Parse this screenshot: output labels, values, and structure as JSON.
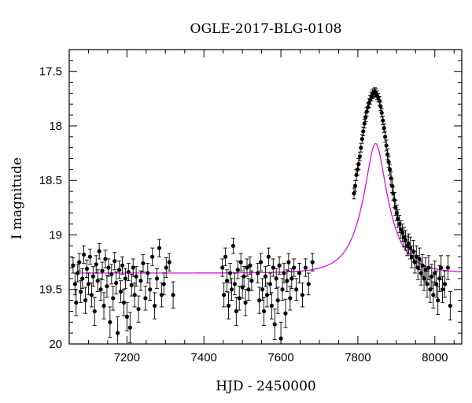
{
  "chart_data": {
    "type": "scatter",
    "title": "OGLE-2017-BLG-0108",
    "xlabel": "HJD - 2450000",
    "ylabel": "I magnitude",
    "xlim": [
      7050,
      8070
    ],
    "ylim": [
      20.0,
      17.3
    ],
    "y_inverted": true,
    "x_ticks": [
      7200,
      7400,
      7600,
      7800,
      8000
    ],
    "y_ticks": [
      17.5,
      18,
      18.5,
      19,
      19.5,
      20
    ],
    "y_tick_labels": [
      "17.5",
      "18",
      "18.5",
      "19",
      "19.5",
      "20"
    ],
    "grid": false,
    "series": [
      {
        "style": "points-with-error-bars",
        "color": "#000000",
        "points": [
          [
            7060,
            19.28,
            0.07
          ],
          [
            7065,
            19.45,
            0.1
          ],
          [
            7068,
            19.62,
            0.12
          ],
          [
            7072,
            19.35,
            0.08
          ],
          [
            7076,
            19.25,
            0.08
          ],
          [
            7080,
            19.52,
            0.1
          ],
          [
            7084,
            19.4,
            0.09
          ],
          [
            7088,
            19.18,
            0.08
          ],
          [
            7092,
            19.6,
            0.12
          ],
          [
            7096,
            19.31,
            0.08
          ],
          [
            7100,
            19.45,
            0.1
          ],
          [
            7104,
            19.2,
            0.07
          ],
          [
            7108,
            19.55,
            0.11
          ],
          [
            7112,
            19.38,
            0.09
          ],
          [
            7116,
            19.7,
            0.13
          ],
          [
            7120,
            19.27,
            0.08
          ],
          [
            7124,
            19.42,
            0.1
          ],
          [
            7128,
            19.15,
            0.07
          ],
          [
            7132,
            19.5,
            0.1
          ],
          [
            7136,
            19.33,
            0.08
          ],
          [
            7140,
            19.65,
            0.12
          ],
          [
            7144,
            19.22,
            0.08
          ],
          [
            7148,
            19.47,
            0.1
          ],
          [
            7152,
            19.3,
            0.08
          ],
          [
            7156,
            19.8,
            0.14
          ],
          [
            7160,
            19.36,
            0.09
          ],
          [
            7164,
            19.58,
            0.11
          ],
          [
            7168,
            19.24,
            0.08
          ],
          [
            7172,
            19.44,
            0.1
          ],
          [
            7176,
            19.9,
            0.15
          ],
          [
            7180,
            19.32,
            0.08
          ],
          [
            7184,
            19.52,
            0.1
          ],
          [
            7188,
            19.28,
            0.08
          ],
          [
            7192,
            19.62,
            0.12
          ],
          [
            7196,
            19.4,
            0.09
          ],
          [
            7200,
            19.75,
            0.13
          ],
          [
            7204,
            19.34,
            0.08
          ],
          [
            7208,
            19.85,
            0.14
          ],
          [
            7212,
            19.46,
            0.1
          ],
          [
            7216,
            19.3,
            0.08
          ],
          [
            7220,
            19.55,
            0.11
          ],
          [
            7224,
            19.38,
            0.09
          ],
          [
            7230,
            19.68,
            0.12
          ],
          [
            7236,
            19.42,
            0.09
          ],
          [
            7242,
            19.26,
            0.08
          ],
          [
            7248,
            19.58,
            0.11
          ],
          [
            7254,
            19.35,
            0.09
          ],
          [
            7260,
            19.5,
            0.1
          ],
          [
            7266,
            19.2,
            0.08
          ],
          [
            7272,
            19.65,
            0.12
          ],
          [
            7278,
            19.4,
            0.09
          ],
          [
            7284,
            19.12,
            0.08
          ],
          [
            7290,
            19.55,
            0.11
          ],
          [
            7296,
            19.45,
            0.1
          ],
          [
            7302,
            19.3,
            0.09
          ],
          [
            7310,
            19.25,
            0.08
          ],
          [
            7320,
            19.55,
            0.12
          ],
          [
            7448,
            19.3,
            0.08
          ],
          [
            7452,
            19.55,
            0.11
          ],
          [
            7456,
            19.2,
            0.08
          ],
          [
            7460,
            19.42,
            0.1
          ],
          [
            7464,
            19.65,
            0.12
          ],
          [
            7468,
            19.35,
            0.09
          ],
          [
            7472,
            19.5,
            0.1
          ],
          [
            7476,
            19.1,
            0.07
          ],
          [
            7480,
            19.45,
            0.1
          ],
          [
            7484,
            19.7,
            0.13
          ],
          [
            7488,
            19.32,
            0.08
          ],
          [
            7492,
            19.58,
            0.11
          ],
          [
            7496,
            19.25,
            0.08
          ],
          [
            7500,
            19.48,
            0.1
          ],
          [
            7504,
            19.38,
            0.09
          ],
          [
            7508,
            19.62,
            0.12
          ],
          [
            7512,
            19.3,
            0.08
          ],
          [
            7516,
            19.5,
            0.1
          ],
          [
            7520,
            19.28,
            0.08
          ],
          [
            7524,
            19.42,
            0.09
          ],
          [
            7540,
            19.35,
            0.09
          ],
          [
            7544,
            19.6,
            0.12
          ],
          [
            7548,
            19.25,
            0.08
          ],
          [
            7552,
            19.5,
            0.1
          ],
          [
            7556,
            19.7,
            0.13
          ],
          [
            7560,
            19.38,
            0.09
          ],
          [
            7564,
            19.55,
            0.11
          ],
          [
            7568,
            19.2,
            0.08
          ],
          [
            7572,
            19.45,
            0.1
          ],
          [
            7576,
            19.65,
            0.12
          ],
          [
            7580,
            19.3,
            0.08
          ],
          [
            7584,
            19.82,
            0.14
          ],
          [
            7588,
            19.4,
            0.09
          ],
          [
            7592,
            19.6,
            0.12
          ],
          [
            7596,
            19.28,
            0.08
          ],
          [
            7600,
            19.95,
            0.15
          ],
          [
            7604,
            19.5,
            0.1
          ],
          [
            7608,
            19.35,
            0.09
          ],
          [
            7612,
            19.72,
            0.13
          ],
          [
            7616,
            19.42,
            0.1
          ],
          [
            7620,
            19.25,
            0.08
          ],
          [
            7624,
            19.58,
            0.11
          ],
          [
            7628,
            19.4,
            0.09
          ],
          [
            7634,
            19.3,
            0.08
          ],
          [
            7640,
            19.5,
            0.1
          ],
          [
            7648,
            19.35,
            0.09
          ],
          [
            7656,
            19.55,
            0.11
          ],
          [
            7664,
            19.3,
            0.08
          ],
          [
            7672,
            19.45,
            0.1
          ],
          [
            7682,
            19.25,
            0.08
          ],
          [
            7790,
            18.62,
            0.05
          ],
          [
            7793,
            18.55,
            0.05
          ],
          [
            7796,
            18.45,
            0.05
          ],
          [
            7799,
            18.4,
            0.05
          ],
          [
            7802,
            18.35,
            0.05
          ],
          [
            7805,
            18.28,
            0.04
          ],
          [
            7808,
            18.2,
            0.04
          ],
          [
            7811,
            18.12,
            0.04
          ],
          [
            7814,
            18.05,
            0.04
          ],
          [
            7817,
            17.98,
            0.04
          ],
          [
            7820,
            17.92,
            0.04
          ],
          [
            7823,
            17.87,
            0.04
          ],
          [
            7826,
            17.83,
            0.04
          ],
          [
            7829,
            17.79,
            0.04
          ],
          [
            7832,
            17.76,
            0.04
          ],
          [
            7835,
            17.73,
            0.04
          ],
          [
            7838,
            17.71,
            0.04
          ],
          [
            7841,
            17.7,
            0.04
          ],
          [
            7844,
            17.69,
            0.04
          ],
          [
            7847,
            17.7,
            0.04
          ],
          [
            7850,
            17.72,
            0.04
          ],
          [
            7853,
            17.74,
            0.04
          ],
          [
            7856,
            17.77,
            0.04
          ],
          [
            7859,
            17.82,
            0.04
          ],
          [
            7862,
            17.88,
            0.04
          ],
          [
            7865,
            17.95,
            0.04
          ],
          [
            7868,
            18.02,
            0.04
          ],
          [
            7871,
            18.1,
            0.05
          ],
          [
            7874,
            18.18,
            0.05
          ],
          [
            7877,
            18.26,
            0.05
          ],
          [
            7880,
            18.33,
            0.05
          ],
          [
            7883,
            18.4,
            0.05
          ],
          [
            7886,
            18.48,
            0.06
          ],
          [
            7889,
            18.55,
            0.06
          ],
          [
            7892,
            18.62,
            0.06
          ],
          [
            7895,
            18.68,
            0.07
          ],
          [
            7898,
            18.75,
            0.07
          ],
          [
            7901,
            18.8,
            0.07
          ],
          [
            7904,
            18.85,
            0.08
          ],
          [
            7908,
            18.9,
            0.08
          ],
          [
            7912,
            18.95,
            0.08
          ],
          [
            7916,
            18.98,
            0.08
          ],
          [
            7920,
            19.02,
            0.09
          ],
          [
            7924,
            19.05,
            0.09
          ],
          [
            7928,
            19.1,
            0.09
          ],
          [
            7932,
            19.08,
            0.09
          ],
          [
            7936,
            19.12,
            0.1
          ],
          [
            7940,
            19.2,
            0.1
          ],
          [
            7944,
            19.15,
            0.1
          ],
          [
            7948,
            19.25,
            0.1
          ],
          [
            7952,
            19.2,
            0.1
          ],
          [
            7956,
            19.3,
            0.11
          ],
          [
            7960,
            19.22,
            0.1
          ],
          [
            7964,
            19.35,
            0.11
          ],
          [
            7968,
            19.28,
            0.1
          ],
          [
            7972,
            19.4,
            0.11
          ],
          [
            7976,
            19.32,
            0.11
          ],
          [
            7980,
            19.45,
            0.12
          ],
          [
            7984,
            19.3,
            0.11
          ],
          [
            7988,
            19.5,
            0.12
          ],
          [
            7992,
            19.38,
            0.11
          ],
          [
            7996,
            19.55,
            0.12
          ],
          [
            8000,
            19.35,
            0.11
          ],
          [
            8004,
            19.45,
            0.12
          ],
          [
            8008,
            19.6,
            0.13
          ],
          [
            8012,
            19.4,
            0.12
          ],
          [
            8016,
            19.3,
            0.11
          ],
          [
            8020,
            19.5,
            0.12
          ],
          [
            8026,
            19.45,
            0.12
          ],
          [
            8034,
            19.3,
            0.11
          ],
          [
            8040,
            19.65,
            0.13
          ]
        ]
      },
      {
        "style": "model-line",
        "color": "#e00fe0",
        "baseline": 19.35,
        "model": {
          "t0": 7846,
          "u0": 0.35,
          "tE": 66
        }
      }
    ]
  }
}
